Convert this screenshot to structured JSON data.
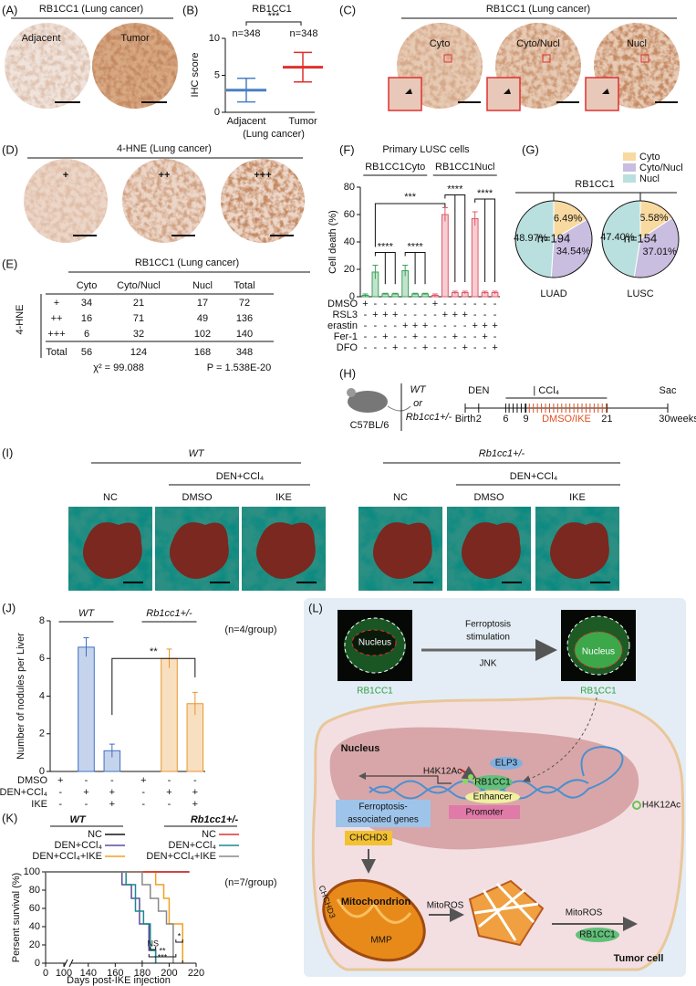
{
  "panel_labels": [
    "(A)",
    "(B)",
    "(C)",
    "(D)",
    "(E)",
    "(F)",
    "(G)",
    "(H)",
    "(I)",
    "(J)",
    "(K)",
    "(L)"
  ],
  "A": {
    "title": "RB1CC1 (Lung cancer)",
    "labels": [
      "Adjacent",
      "Tumor"
    ]
  },
  "C": {
    "title": "RB1CC1 (Lung cancer)",
    "labels": [
      "Cyto",
      "Cyto/Nucl",
      "Nucl"
    ]
  },
  "D": {
    "title": "4-HNE (Lung cancer)",
    "labels": [
      "+",
      "++",
      "+++"
    ]
  },
  "E": {
    "title": "RB1CC1 (Lung cancer)",
    "row_group": "4-HNE",
    "header": [
      "Cyto",
      "Cyto/Nucl",
      "Nucl",
      "Total"
    ],
    "rows": [
      [
        "+",
        "34",
        "21",
        "17",
        "72"
      ],
      [
        "++",
        "16",
        "71",
        "49",
        "136"
      ],
      [
        "+++",
        "6",
        "32",
        "102",
        "140"
      ],
      [
        "Total",
        "56",
        "124",
        "168",
        "348"
      ]
    ],
    "stats": [
      "χ² = 99.088",
      "P = 1.538E-20"
    ]
  },
  "H": {
    "strain": "C57BL/6",
    "genotypes": [
      "WT",
      "or",
      "Rb1cc1+/-"
    ],
    "events": [
      "DEN",
      "| CCl₄",
      "Sac",
      "DMSO/IKE"
    ],
    "ticks": [
      {
        "value": 0,
        "label": "Birth"
      },
      2,
      6,
      9,
      21,
      {
        "value": 30,
        "label": "30weeks"
      }
    ]
  },
  "I": {
    "groups": [
      "WT",
      "Rb1cc1+/-"
    ],
    "treatment": [
      "DEN+CCl₄",
      "DEN+CCl₄"
    ],
    "labels": [
      "NC",
      "DMSO",
      "IKE",
      "NC",
      "DMSO",
      "IKE"
    ]
  },
  "L": {
    "nucleus": [
      "Nucleus",
      "Nucleus"
    ],
    "protein": [
      "RB1CC1",
      "RB1CC1"
    ],
    "stimulus": [
      "Ferroptosis",
      "stimulation",
      "JNK"
    ],
    "nucleus_main": "Nucleus",
    "mark": "H4K12Ac",
    "elp3": "ELP3",
    "rb1cc1": "RB1CC1",
    "enhancer": "Enhancer",
    "promoter": "Promoter",
    "genes": [
      "Ferroptosis-",
      "associated genes"
    ],
    "chchd3": "CHCHD3",
    "legend": "H4K12Ac",
    "mito": "Mitochondrion",
    "mmp": "MMP",
    "chchd3_mito": "CHCHD3",
    "ros": [
      "MitoROS",
      "MitoROS"
    ],
    "rb1cc1_end": "RB1CC1",
    "cell": "Tumor cell"
  },
  "chart_data": [
    {
      "type": "dot",
      "title": "RB1CC1",
      "ylabel": "IHC score",
      "categories": [
        "Adjacent",
        "Tumor"
      ],
      "xlabel": "(Lung cancer)",
      "annotations": [
        "***",
        "n=348",
        "n=348"
      ],
      "values": [
        3.0,
        6.1
      ],
      "errors": [
        1.6,
        2.0
      ],
      "colors": [
        "#4a7fc0",
        "#e0302a"
      ],
      "ylim": [
        0,
        10
      ],
      "yticks": [
        0,
        5,
        10
      ]
    },
    {
      "type": "bar",
      "title": "Primary LUSC cells",
      "groups": [
        "RB1CC1Cyto",
        "RB1CC1Nucl"
      ],
      "ylabel": "Cell death (%)",
      "values": [
        1,
        18,
        2,
        2,
        19,
        2,
        2,
        1,
        60,
        3,
        3,
        57,
        3,
        3
      ],
      "errors": [
        1,
        5,
        0.5,
        0.5,
        4,
        0.5,
        0.5,
        1,
        5,
        1,
        1,
        5,
        1,
        1
      ],
      "colors": [
        "#3aa35a",
        "#e05a6a"
      ],
      "conditions": [
        {
          "name": "DMSO",
          "marks": [
            "+",
            "-",
            "-",
            "-",
            "-",
            "-",
            "-",
            "+",
            "-",
            "-",
            "-",
            "-",
            "-",
            "-"
          ]
        },
        {
          "name": "RSL3",
          "marks": [
            "-",
            "+",
            "+",
            "+",
            "-",
            "-",
            "-",
            "-",
            "+",
            "+",
            "+",
            "-",
            "-",
            "-"
          ]
        },
        {
          "name": "erastin",
          "marks": [
            "-",
            "-",
            "-",
            "-",
            "+",
            "+",
            "+",
            "-",
            "-",
            "-",
            "-",
            "+",
            "+",
            "+"
          ]
        },
        {
          "name": "Fer-1",
          "marks": [
            "-",
            "-",
            "+",
            "-",
            "-",
            "+",
            "-",
            "-",
            "-",
            "+",
            "-",
            "-",
            "+",
            "-"
          ]
        },
        {
          "name": "DFO",
          "marks": [
            "-",
            "-",
            "-",
            "+",
            "-",
            "-",
            "+",
            "-",
            "-",
            "-",
            "+",
            "-",
            "-",
            "+"
          ]
        }
      ],
      "annotations": [
        "****",
        "****",
        "****",
        "****",
        "***"
      ],
      "ylim": [
        0,
        80
      ],
      "yticks": [
        0,
        20,
        40,
        60,
        80
      ]
    },
    {
      "type": "pie",
      "title": "RB1CC1",
      "categories": [
        "Cyto",
        "Cyto/Nucl",
        "Nucl"
      ],
      "colors": [
        "#f8d9a0",
        "#c9bde0",
        "#b9e0de"
      ],
      "pies": [
        {
          "name": "LUAD",
          "n": "n=194",
          "values": [
            16.49,
            34.54,
            48.97
          ],
          "value_labels": [
            "16.49%",
            "34.54%",
            "48.97%"
          ]
        },
        {
          "name": "LUSC",
          "n": "n=154",
          "values": [
            15.58,
            37.01,
            47.4
          ],
          "value_labels": [
            "15.58%",
            "37.01%",
            "47.40%"
          ]
        }
      ]
    },
    {
      "type": "bar",
      "ylabel": "Number of nodules per Liver",
      "groups": [
        "WT",
        "Rb1cc1+/-"
      ],
      "annotations": [
        "(n=4/group)",
        "**"
      ],
      "values": [
        0,
        6.6,
        1.1,
        0,
        6.0,
        3.6
      ],
      "errors": [
        0,
        0.5,
        0.35,
        0,
        0.5,
        0.6
      ],
      "colors": [
        "#3f6fbf",
        "#e8962e"
      ],
      "conditions": [
        {
          "name": "DMSO",
          "marks": [
            "+",
            "-",
            "-",
            "+",
            "-",
            "-"
          ]
        },
        {
          "name": "DEN+CCl₄",
          "marks": [
            "-",
            "+",
            "+",
            "-",
            "+",
            "+"
          ]
        },
        {
          "name": "IKE",
          "marks": [
            "-",
            "-",
            "+",
            "-",
            "-",
            "+"
          ]
        }
      ],
      "ylim": [
        0,
        8
      ],
      "yticks": [
        0,
        2,
        4,
        6,
        8
      ]
    },
    {
      "type": "line",
      "ylabel": "Persent survival (%)",
      "xlabel": "Days post-IKE injection",
      "groups": [
        "WT",
        "Rb1cc1+/-"
      ],
      "annotations": [
        "(n=7/group)",
        "NS",
        "**",
        "***",
        "*"
      ],
      "series": [
        {
          "name": "NC",
          "color": "#111111",
          "x": [
            0,
            215
          ],
          "y": [
            100,
            100
          ]
        },
        {
          "name": "DEN+CCl₄",
          "color": "#5b4ba0",
          "x": [
            0,
            165,
            165,
            172,
            172,
            178,
            178,
            185,
            185,
            190,
            190
          ],
          "y": [
            100,
            100,
            86,
            86,
            71,
            71,
            43,
            43,
            14,
            14,
            0
          ]
        },
        {
          "name": "DEN+CCl₄+IKE",
          "color": "#f0a020",
          "x": [
            0,
            190,
            190,
            196,
            196,
            200,
            200,
            206,
            206,
            210,
            210
          ],
          "y": [
            100,
            100,
            86,
            86,
            71,
            71,
            43,
            43,
            43,
            43,
            0
          ]
        },
        {
          "name": "NC",
          "color": "#e03030",
          "x": [
            0,
            215
          ],
          "y": [
            100,
            100
          ]
        },
        {
          "name": "DEN+CCl₄",
          "color": "#1a8a8a",
          "x": [
            0,
            168,
            168,
            175,
            175,
            181,
            181,
            186,
            186,
            190,
            190
          ],
          "y": [
            100,
            100,
            86,
            86,
            57,
            57,
            43,
            43,
            14,
            14,
            0
          ]
        },
        {
          "name": "DEN+CCl₄+IKE",
          "color": "#888888",
          "x": [
            0,
            180,
            180,
            186,
            186,
            192,
            192,
            198,
            198,
            203,
            203
          ],
          "y": [
            100,
            100,
            86,
            86,
            71,
            71,
            57,
            57,
            43,
            43,
            0
          ]
        }
      ],
      "xlim": [
        0,
        220
      ],
      "xticks": [
        0,
        100,
        140,
        160,
        180,
        200,
        220
      ],
      "ylim": [
        0,
        100
      ],
      "yticks": [
        0,
        20,
        40,
        60,
        80,
        100
      ]
    }
  ]
}
